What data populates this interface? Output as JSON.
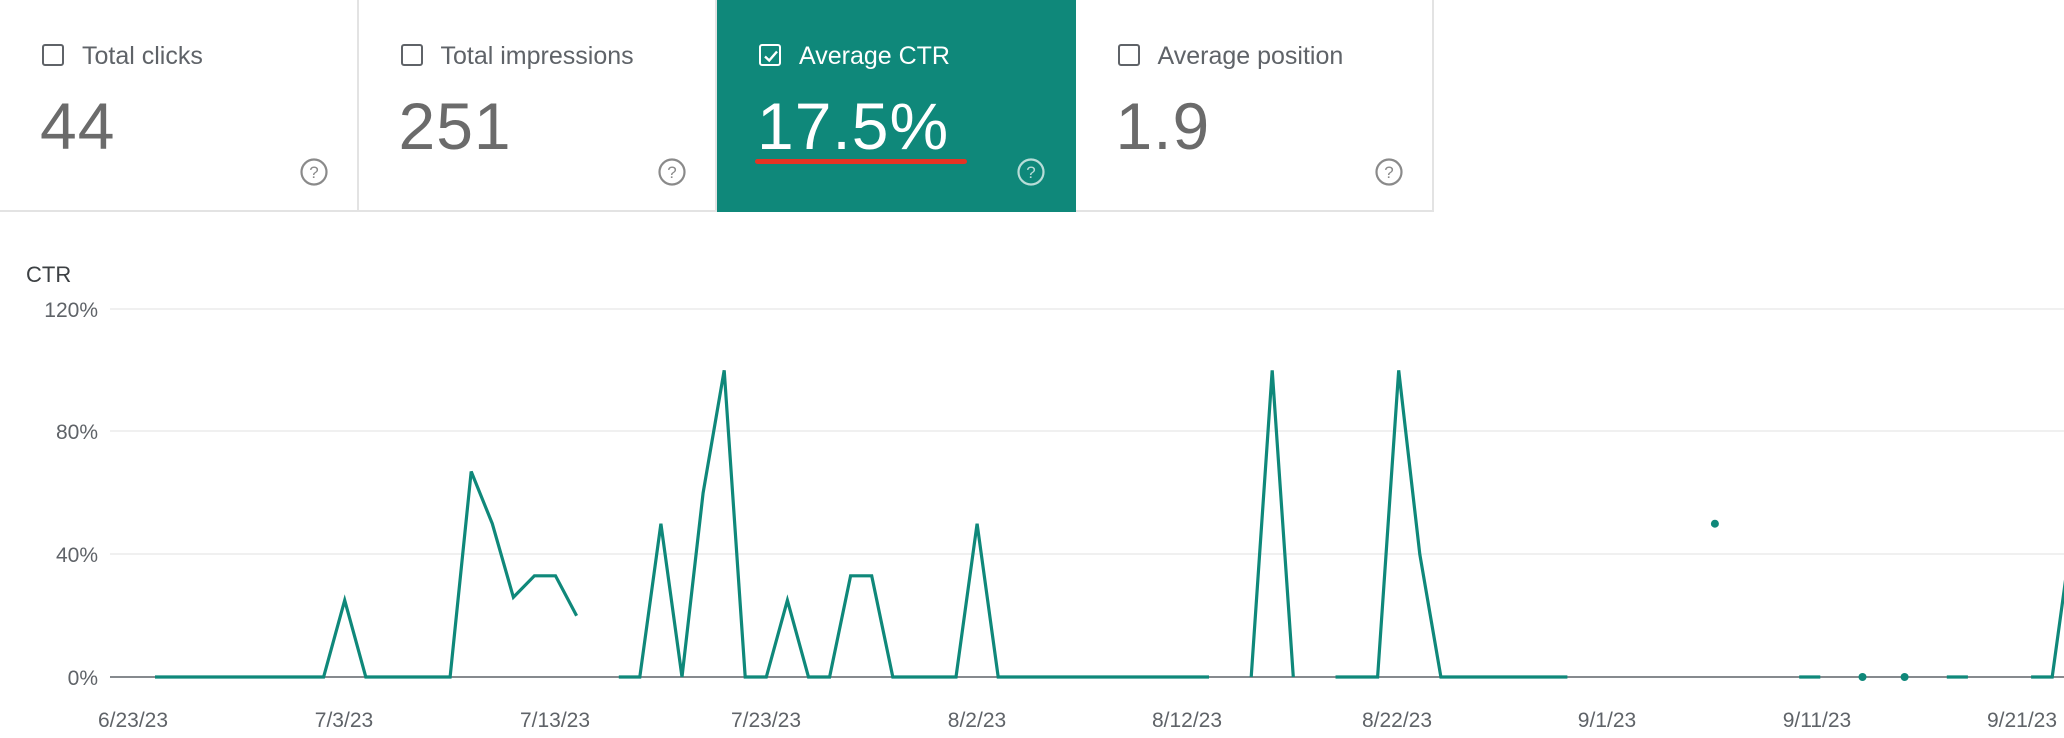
{
  "metrics": [
    {
      "label": "Total clicks",
      "value": "44",
      "checked": false
    },
    {
      "label": "Total impressions",
      "value": "251",
      "checked": false
    },
    {
      "label": "Average CTR",
      "value": "17.5%",
      "checked": true
    },
    {
      "label": "Average position",
      "value": "1.9",
      "checked": false
    }
  ],
  "colors": {
    "accent": "#0f887a",
    "highlight_underline": "#e53424"
  },
  "chart_data": {
    "type": "line",
    "ylabel": "CTR",
    "y_ticks": [
      "120%",
      "80%",
      "40%",
      "0%"
    ],
    "x_ticks": [
      "6/23/23",
      "7/3/23",
      "7/13/23",
      "7/23/23",
      "8/2/23",
      "8/12/23",
      "8/22/23",
      "9/1/23",
      "9/11/23",
      "9/21/23"
    ],
    "ylim": [
      0,
      120
    ],
    "grid": true,
    "x_start": "2023-06-24",
    "series": [
      {
        "values": [
          0,
          0,
          0,
          0,
          0,
          0,
          0,
          0,
          0,
          25,
          0,
          0,
          0,
          0,
          0,
          67,
          50,
          26,
          33,
          33,
          20,
          null,
          0,
          0,
          50,
          0,
          60,
          100,
          0,
          0,
          25,
          0,
          0,
          33,
          33,
          0,
          0,
          0,
          0,
          50,
          0,
          0,
          0,
          0,
          0,
          0,
          0,
          0,
          0,
          0,
          0,
          null,
          0,
          100,
          0,
          null,
          0,
          0,
          0,
          100,
          40,
          0,
          0,
          0,
          0,
          0,
          0,
          0,
          null,
          null,
          null,
          null,
          null,
          null,
          50,
          null,
          null,
          null,
          0,
          0,
          null,
          0,
          null,
          0,
          null,
          0,
          0,
          null,
          null,
          0,
          0,
          50,
          50,
          0,
          0,
          0,
          0
        ]
      }
    ]
  }
}
